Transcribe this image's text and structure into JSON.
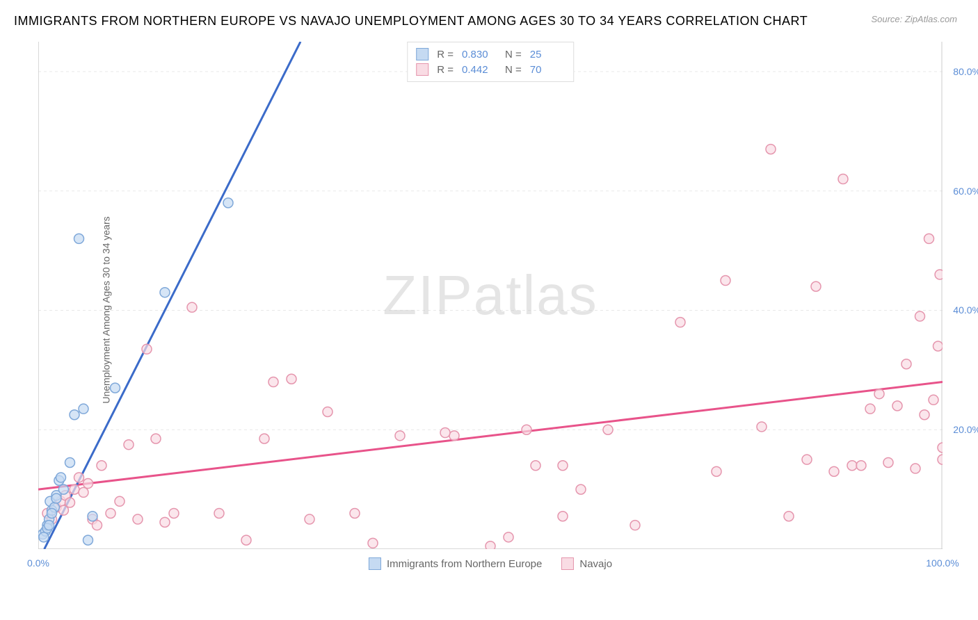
{
  "title": "IMMIGRANTS FROM NORTHERN EUROPE VS NAVAJO UNEMPLOYMENT AMONG AGES 30 TO 34 YEARS CORRELATION CHART",
  "source": "Source: ZipAtlas.com",
  "y_axis_label": "Unemployment Among Ages 30 to 34 years",
  "watermark_bold": "ZIP",
  "watermark_light": "atlas",
  "chart": {
    "type": "scatter",
    "xlim": [
      0,
      100
    ],
    "ylim": [
      0,
      85
    ],
    "x_ticks": [
      {
        "v": 0,
        "l": "0.0%"
      },
      {
        "v": 100,
        "l": "100.0%"
      }
    ],
    "y_ticks": [
      {
        "v": 20,
        "l": "20.0%"
      },
      {
        "v": 40,
        "l": "40.0%"
      },
      {
        "v": 60,
        "l": "60.0%"
      },
      {
        "v": 80,
        "l": "80.0%"
      }
    ],
    "gridline_color": "#e8e8e8",
    "axis_color": "#cccccc",
    "background_color": "#ffffff"
  },
  "series": {
    "blue": {
      "label": "Immigrants from Northern Europe",
      "R": "0.830",
      "N": "25",
      "marker_fill": "#c5daf2",
      "marker_stroke": "#7fa8d9",
      "marker_radius": 7,
      "line_color": "#3b6bc9",
      "line_width": 3,
      "regression": {
        "x1": 0,
        "y1": -2,
        "x2": 29,
        "y2": 85
      },
      "points": [
        [
          0.5,
          2.5
        ],
        [
          0.8,
          3
        ],
        [
          1,
          4
        ],
        [
          1.2,
          5
        ],
        [
          1.5,
          6.5
        ],
        [
          1.3,
          8
        ],
        [
          2,
          9
        ],
        [
          1.8,
          7
        ],
        [
          2.3,
          11.5
        ],
        [
          2.5,
          12
        ],
        [
          3.5,
          14.5
        ],
        [
          4,
          22.5
        ],
        [
          5,
          23.5
        ],
        [
          5.5,
          1.5
        ],
        [
          6,
          5.5
        ],
        [
          1.5,
          6
        ],
        [
          8.5,
          27
        ],
        [
          14,
          43
        ],
        [
          4.5,
          52
        ],
        [
          21,
          58
        ],
        [
          1,
          3.5
        ],
        [
          2,
          8.5
        ],
        [
          2.8,
          10
        ],
        [
          1.2,
          4
        ],
        [
          0.6,
          2
        ]
      ]
    },
    "pink": {
      "label": "Navajo",
      "R": "0.442",
      "N": "70",
      "marker_fill": "#f9dce4",
      "marker_stroke": "#e595ad",
      "marker_radius": 7,
      "line_color": "#e8538a",
      "line_width": 3,
      "regression": {
        "x1": 0,
        "y1": 10,
        "x2": 100,
        "y2": 28
      },
      "points": [
        [
          1,
          6
        ],
        [
          2,
          7
        ],
        [
          2.5,
          8
        ],
        [
          3,
          9
        ],
        [
          4,
          10
        ],
        [
          4.5,
          12
        ],
        [
          5,
          9.5
        ],
        [
          6,
          5
        ],
        [
          7,
          14
        ],
        [
          8,
          6
        ],
        [
          10,
          17.5
        ],
        [
          11,
          5
        ],
        [
          12,
          33.5
        ],
        [
          13,
          18.5
        ],
        [
          15,
          6
        ],
        [
          17,
          40.5
        ],
        [
          23,
          1.5
        ],
        [
          25,
          18.5
        ],
        [
          26,
          28
        ],
        [
          28,
          28.5
        ],
        [
          30,
          5
        ],
        [
          32,
          23
        ],
        [
          35,
          6
        ],
        [
          37,
          1
        ],
        [
          40,
          19
        ],
        [
          46,
          19
        ],
        [
          50,
          0.5
        ],
        [
          52,
          2
        ],
        [
          54,
          20
        ],
        [
          55,
          14
        ],
        [
          58,
          5.5
        ],
        [
          60,
          10
        ],
        [
          63,
          20
        ],
        [
          66,
          4
        ],
        [
          71,
          38
        ],
        [
          75,
          13
        ],
        [
          76,
          45
        ],
        [
          80,
          20.5
        ],
        [
          81,
          67
        ],
        [
          83,
          5.5
        ],
        [
          85,
          15
        ],
        [
          86,
          44
        ],
        [
          88,
          13
        ],
        [
          89,
          62
        ],
        [
          90,
          14
        ],
        [
          91,
          14
        ],
        [
          92,
          23.5
        ],
        [
          93,
          26
        ],
        [
          94,
          14.5
        ],
        [
          95,
          24
        ],
        [
          96,
          31
        ],
        [
          97,
          13.5
        ],
        [
          97.5,
          39
        ],
        [
          98,
          22.5
        ],
        [
          98.5,
          52
        ],
        [
          99,
          25
        ],
        [
          99.5,
          34
        ],
        [
          99.7,
          46
        ],
        [
          100,
          17
        ],
        [
          100,
          15
        ],
        [
          1.5,
          5
        ],
        [
          2.8,
          6.5
        ],
        [
          3.5,
          7.8
        ],
        [
          5.5,
          11
        ],
        [
          6.5,
          4
        ],
        [
          9,
          8
        ],
        [
          14,
          4.5
        ],
        [
          20,
          6
        ],
        [
          45,
          19.5
        ],
        [
          58,
          14
        ]
      ]
    }
  }
}
